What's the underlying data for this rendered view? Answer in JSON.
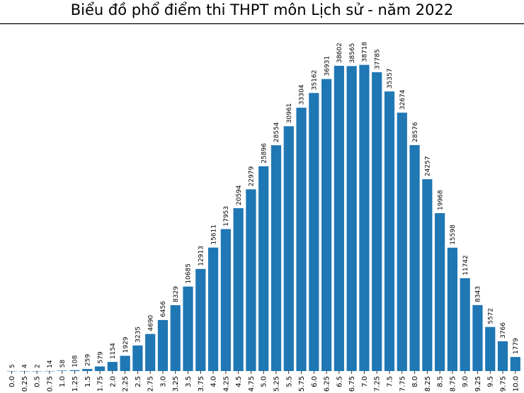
{
  "chart_data": {
    "type": "bar",
    "title": "Biểu đồ phổ điểm thi THPT môn Lịch sử - năm 2022",
    "xlabel": "",
    "ylabel": "",
    "categories": [
      "0.0",
      "0.25",
      "0.5",
      "0.75",
      "1.0",
      "1.25",
      "1.5",
      "1.75",
      "2.0",
      "2.25",
      "2.5",
      "2.75",
      "3.0",
      "3.25",
      "3.5",
      "3.75",
      "4.0",
      "4.25",
      "4.5",
      "4.75",
      "5.0",
      "5.25",
      "5.5",
      "5.75",
      "6.0",
      "6.25",
      "6.5",
      "6.75",
      "7.0",
      "7.25",
      "7.5",
      "7.75",
      "8.0",
      "8.25",
      "8.5",
      "8.75",
      "9.0",
      "9.25",
      "9.5",
      "9.75",
      "10.0"
    ],
    "values": [
      5,
      4,
      2,
      14,
      58,
      108,
      259,
      579,
      1154,
      1929,
      3235,
      4690,
      6456,
      8329,
      10685,
      12913,
      15611,
      17953,
      20594,
      22979,
      25896,
      28554,
      30961,
      33304,
      35162,
      36931,
      38602,
      38565,
      38718,
      37785,
      35357,
      32674,
      28576,
      24257,
      19968,
      15598,
      11742,
      8343,
      5572,
      3766,
      1779
    ],
    "ylim": [
      0,
      40000
    ],
    "grid": false,
    "legend": "none",
    "bar_color": "#1f77b4"
  }
}
